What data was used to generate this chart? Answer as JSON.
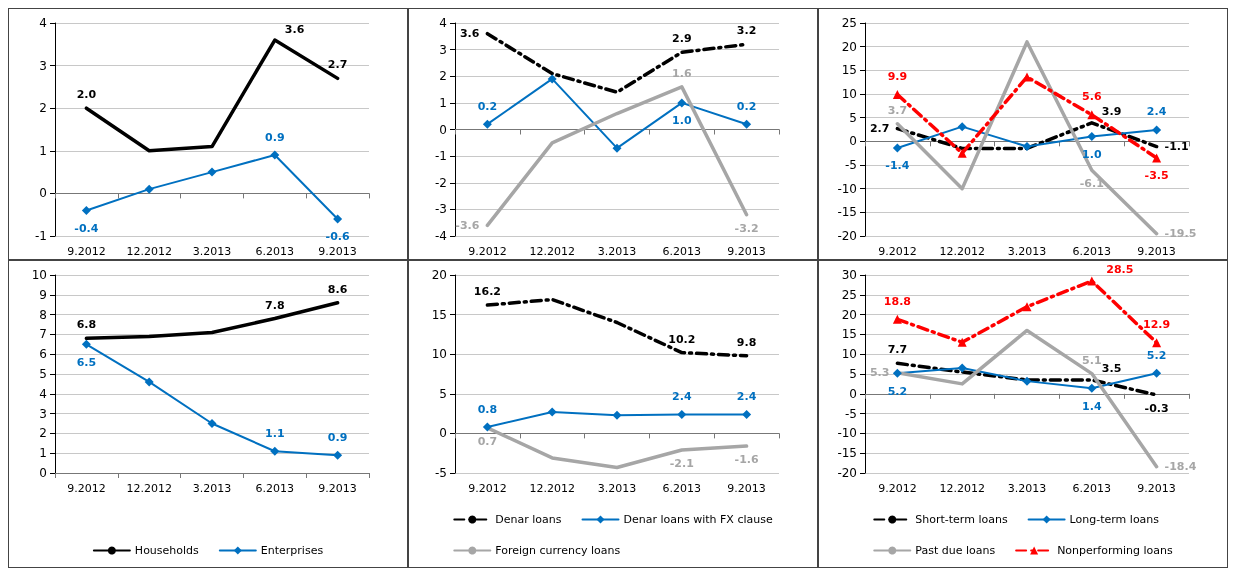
{
  "chart_data": [
    {
      "type": "line",
      "categories": [
        "9.2012",
        "12.2012",
        "3.2013",
        "6.2013",
        "9.2013"
      ],
      "ylim": [
        -1,
        4
      ],
      "yticks": [
        -1,
        0,
        1,
        2,
        3,
        4
      ],
      "grid": "y",
      "legend": false,
      "series": [
        {
          "color": "#000000",
          "marker": "none",
          "line_style": "solid",
          "values": [
            2.0,
            1.0,
            1.1,
            3.6,
            2.7
          ],
          "value_labels": [
            "2.0",
            null,
            null,
            "3.6",
            "2.7"
          ]
        },
        {
          "color": "#0070c0",
          "marker": "diamond",
          "line_style": "solid",
          "values": [
            -0.4,
            0.1,
            0.5,
            0.9,
            -0.6
          ],
          "value_labels": [
            "-0.4",
            null,
            null,
            "0.9",
            "-0.6"
          ]
        }
      ]
    },
    {
      "type": "line",
      "categories": [
        "9.2012",
        "12.2012",
        "3.2013",
        "6.2013",
        "9.2013"
      ],
      "ylim": [
        -4,
        4
      ],
      "yticks": [
        -4,
        -3,
        -2,
        -1,
        0,
        1,
        2,
        3,
        4
      ],
      "grid": "y",
      "legend": false,
      "series": [
        {
          "color": "#000000",
          "marker": "none",
          "line_style": "dashed",
          "values": [
            3.6,
            2.1,
            1.4,
            2.9,
            3.2
          ],
          "value_labels": [
            "3.6",
            null,
            null,
            "2.9",
            "3.2"
          ]
        },
        {
          "color": "#0070c0",
          "marker": "diamond",
          "line_style": "solid",
          "values": [
            0.2,
            1.9,
            -0.7,
            1.0,
            0.2
          ],
          "value_labels": [
            "0.2",
            null,
            null,
            "1.0",
            "0.2"
          ]
        },
        {
          "color": "#a6a6a6",
          "marker": "none",
          "line_style": "solid",
          "values": [
            -3.6,
            -0.5,
            0.6,
            1.6,
            -3.2
          ],
          "value_labels": [
            "-3.6",
            null,
            null,
            "1.6",
            "-3.2"
          ]
        }
      ]
    },
    {
      "type": "line",
      "categories": [
        "9.2012",
        "12.2012",
        "3.2013",
        "6.2013",
        "9.2013"
      ],
      "ylim": [
        -20,
        25
      ],
      "yticks": [
        -20,
        -15,
        -10,
        -5,
        0,
        5,
        10,
        15,
        20,
        25
      ],
      "grid": "y",
      "legend": false,
      "series": [
        {
          "color": "#000000",
          "marker": "none",
          "line_style": "dashed",
          "values": [
            2.7,
            -1.5,
            -1.5,
            3.9,
            -1.1
          ],
          "value_labels": [
            "2.7",
            null,
            null,
            "3.9",
            "-1.1"
          ]
        },
        {
          "color": "#0070c0",
          "marker": "diamond",
          "line_style": "solid",
          "values": [
            -1.4,
            3.1,
            -1.1,
            1.0,
            2.4
          ],
          "value_labels": [
            "-1.4",
            null,
            null,
            "1.0",
            "2.4"
          ]
        },
        {
          "color": "#a6a6a6",
          "marker": "none",
          "line_style": "solid",
          "values": [
            3.7,
            -10,
            21,
            -6.1,
            -19.5
          ],
          "value_labels": [
            "3.7",
            null,
            null,
            "-6.1",
            "-19.5"
          ]
        },
        {
          "color": "#ff0000",
          "marker": "triangle",
          "line_style": "dashed",
          "values": [
            9.9,
            -2.5,
            13.6,
            5.6,
            -3.5
          ],
          "value_labels": [
            "9.9",
            null,
            null,
            "5.6",
            "-3.5"
          ]
        }
      ]
    },
    {
      "type": "line",
      "categories": [
        "9.2012",
        "12.2012",
        "3.2013",
        "6.2013",
        "9.2013"
      ],
      "ylim": [
        0,
        10
      ],
      "yticks": [
        0,
        1,
        2,
        3,
        4,
        5,
        6,
        7,
        8,
        9,
        10
      ],
      "grid": "y",
      "legend": "bottom",
      "series": [
        {
          "name": "Households",
          "color": "#000000",
          "marker": "none",
          "line_style": "solid",
          "values": [
            6.8,
            6.9,
            7.1,
            7.8,
            8.6
          ],
          "value_labels": [
            "6.8",
            null,
            null,
            "7.8",
            "8.6"
          ]
        },
        {
          "name": "Enterprises",
          "color": "#0070c0",
          "marker": "diamond",
          "line_style": "solid",
          "values": [
            6.5,
            4.6,
            2.5,
            1.1,
            0.9
          ],
          "value_labels": [
            "6.5",
            null,
            null,
            "1.1",
            "0.9"
          ]
        }
      ]
    },
    {
      "type": "line",
      "categories": [
        "9.2012",
        "12.2012",
        "3.2013",
        "6.2013",
        "9.2013"
      ],
      "ylim": [
        -5,
        20
      ],
      "yticks": [
        -5,
        0,
        5,
        10,
        15,
        20
      ],
      "grid": "y",
      "legend": "bottom",
      "series": [
        {
          "name": "Denar loans",
          "color": "#000000",
          "marker": "none",
          "line_style": "dashed",
          "values": [
            16.2,
            16.9,
            14.0,
            10.2,
            9.8
          ],
          "value_labels": [
            "16.2",
            null,
            null,
            "10.2",
            "9.8"
          ]
        },
        {
          "name": "Denar loans with FX clause",
          "color": "#0070c0",
          "marker": "diamond",
          "line_style": "solid",
          "values": [
            0.8,
            2.7,
            2.3,
            2.4,
            2.4
          ],
          "value_labels": [
            "0.8",
            null,
            null,
            "2.4",
            "2.4"
          ]
        },
        {
          "name": "Foreign currency loans",
          "color": "#a6a6a6",
          "marker": "none",
          "line_style": "solid",
          "values": [
            0.7,
            -3.1,
            -4.3,
            -2.1,
            -1.6
          ],
          "value_labels": [
            "0.7",
            null,
            null,
            "-2.1",
            "-1.6"
          ]
        }
      ]
    },
    {
      "type": "line",
      "categories": [
        "9.2012",
        "12.2012",
        "3.2013",
        "6.2013",
        "9.2013"
      ],
      "ylim": [
        -20,
        30
      ],
      "yticks": [
        -20,
        -15,
        -10,
        -5,
        0,
        5,
        10,
        15,
        20,
        25,
        30
      ],
      "grid": "y",
      "legend": "bottom",
      "series": [
        {
          "name": "Short-term loans",
          "color": "#000000",
          "marker": "none",
          "line_style": "dashed",
          "values": [
            7.7,
            5.5,
            3.5,
            3.5,
            -0.3
          ],
          "value_labels": [
            "7.7",
            null,
            null,
            "3.5",
            "-0.3"
          ]
        },
        {
          "name": "Long-term loans",
          "color": "#0070c0",
          "marker": "diamond",
          "line_style": "solid",
          "values": [
            5.2,
            6.5,
            3.2,
            1.4,
            5.2
          ],
          "value_labels": [
            "5.2",
            null,
            null,
            "1.4",
            "5.2"
          ]
        },
        {
          "name": "Past due loans",
          "color": "#a6a6a6",
          "marker": "none",
          "line_style": "solid",
          "values": [
            5.3,
            2.5,
            16,
            5.1,
            -18.4
          ],
          "value_labels": [
            "5.3",
            null,
            null,
            "5.1",
            "-18.4"
          ]
        },
        {
          "name": "Nonperforming loans",
          "color": "#ff0000",
          "marker": "triangle",
          "line_style": "dashed",
          "values": [
            18.8,
            13.0,
            22.0,
            28.5,
            12.9
          ],
          "value_labels": [
            "18.8",
            null,
            null,
            "28.5",
            "12.9"
          ]
        }
      ]
    }
  ]
}
